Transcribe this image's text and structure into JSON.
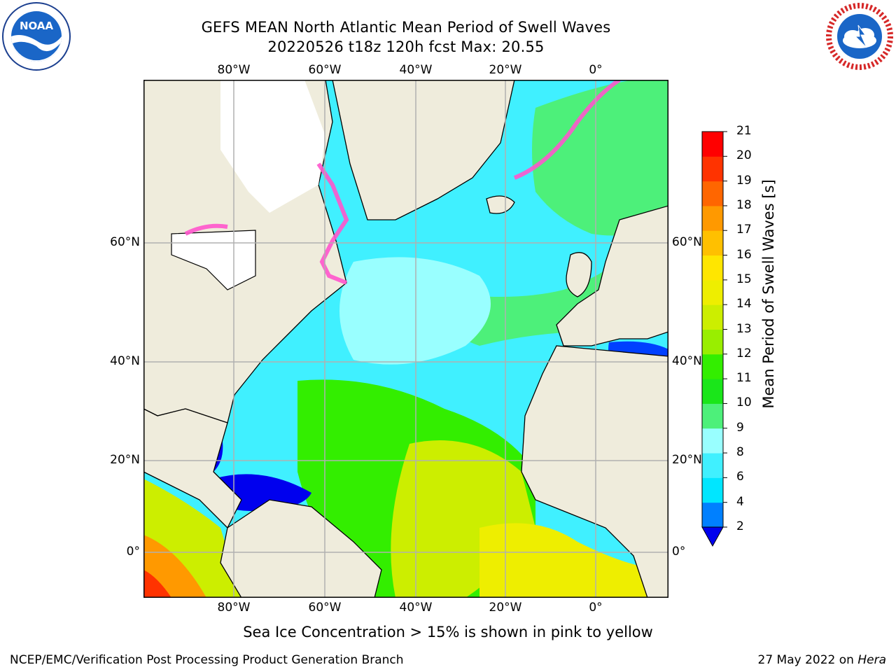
{
  "header": {
    "title_line1": "GEFS MEAN North Atlantic Mean Period of Swell Waves",
    "title_line2": "20220526 t18z 120h fcst   Max: 20.55"
  },
  "logos": {
    "left": "noaa-logo",
    "right": "nws-logo"
  },
  "map": {
    "lon_labels": [
      "80°W",
      "60°W",
      "40°W",
      "20°W",
      "0°"
    ],
    "lat_labels": [
      "60°N",
      "40°N",
      "20°N",
      "0°"
    ],
    "lon_extent": [
      -100,
      15
    ],
    "lat_extent": [
      -8,
      80
    ],
    "gridlines": true,
    "colors": {
      "land": "#efecdc",
      "ice": "#ffffff",
      "grid": "#b0b0b0"
    }
  },
  "colorbar": {
    "label": "Mean Period of Swell Waves [s]",
    "tick_labels": [
      "2",
      "4",
      "6",
      "8",
      "9",
      "10",
      "11",
      "12",
      "13",
      "14",
      "15",
      "16",
      "17",
      "18",
      "19",
      "20",
      "21"
    ],
    "colors": [
      "#0040ff",
      "#0080ff",
      "#00e6ff",
      "#40f0ff",
      "#99ffff",
      "#4df07a",
      "#1ae61a",
      "#33ee00",
      "#99ee00",
      "#ccee00",
      "#eeee00",
      "#ffe600",
      "#ffc000",
      "#ff9900",
      "#ff6600",
      "#ff3300",
      "#ff0000"
    ],
    "extend_color": "#0000ee"
  },
  "note": "Sea Ice Concentration > 15% is shown in pink to yellow",
  "footer": {
    "left": "NCEP/EMC/Verification Post Processing Product Generation Branch",
    "date": "27 May 2022 on",
    "host": "Hera"
  }
}
